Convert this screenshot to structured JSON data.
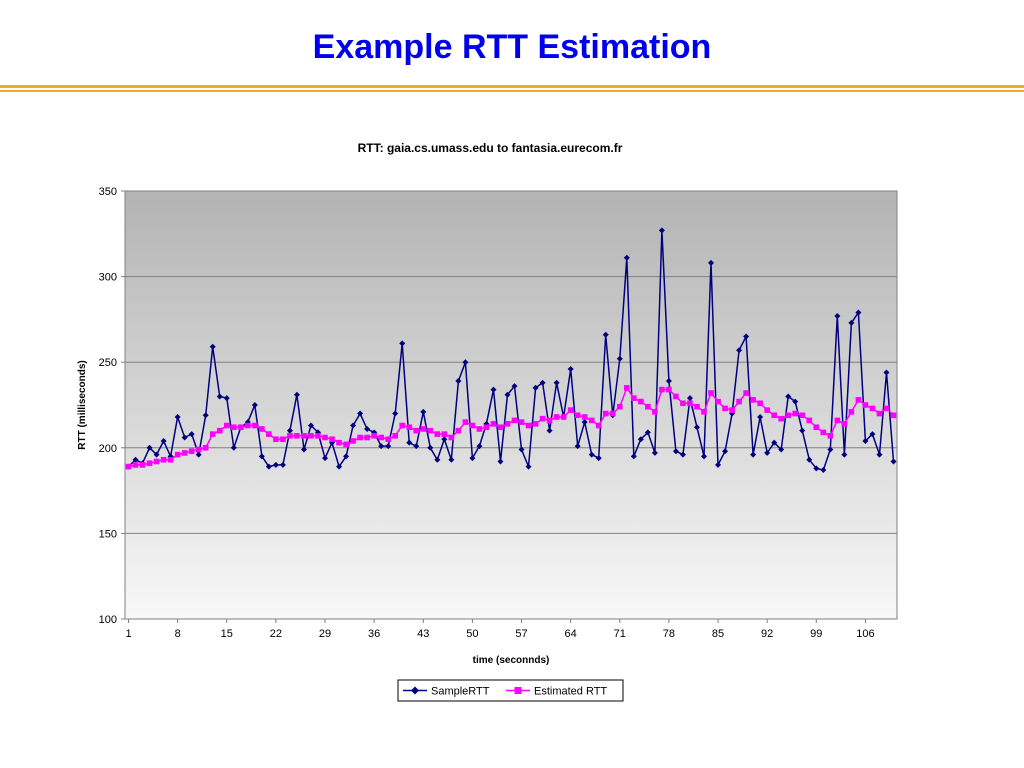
{
  "slide": {
    "title": "Example RTT Estimation"
  },
  "chart_data": {
    "type": "line",
    "title": "RTT: gaia.cs.umass.edu to fantasia.eurecom.fr",
    "xlabel": "time (seconnds)",
    "ylabel": "RTT (milliseconds)",
    "ylim": [
      100,
      350
    ],
    "yticks": [
      100,
      150,
      200,
      250,
      300,
      350
    ],
    "xticks": [
      "1",
      "8",
      "15",
      "22",
      "29",
      "36",
      "43",
      "50",
      "57",
      "64",
      "71",
      "78",
      "85",
      "92",
      "99",
      "106"
    ],
    "x_start": 1,
    "grid": true,
    "legend_position": "bottom",
    "series": [
      {
        "name": "SampleRTT",
        "color": "#000080",
        "marker": "diamond",
        "values": [
          189,
          193,
          191,
          200,
          196,
          204,
          195,
          218,
          206,
          208,
          196,
          219,
          259,
          230,
          229,
          200,
          212,
          215,
          225,
          195,
          189,
          190,
          190,
          210,
          231,
          199,
          213,
          209,
          194,
          203,
          189,
          195,
          213,
          220,
          211,
          209,
          201,
          201,
          220,
          261,
          203,
          201,
          221,
          200,
          193,
          205,
          193,
          239,
          250,
          194,
          201,
          214,
          234,
          192,
          231,
          236,
          199,
          189,
          235,
          238,
          210,
          238,
          218,
          246,
          201,
          215,
          196,
          194,
          266,
          219,
          252,
          311,
          195,
          205,
          209,
          197,
          327,
          239,
          198,
          196,
          229,
          212,
          195,
          308,
          190,
          198,
          220,
          257,
          265,
          196,
          218,
          197,
          203,
          199,
          230,
          227,
          210,
          193,
          188,
          187,
          199,
          277,
          196,
          273,
          279,
          204,
          208,
          196,
          244,
          192
        ]
      },
      {
        "name": "Estimated RTT",
        "color": "#ff00ff",
        "marker": "square",
        "values": [
          189,
          190,
          190,
          191,
          192,
          193,
          193,
          196,
          197,
          198,
          199,
          200,
          208,
          210,
          213,
          212,
          212,
          213,
          213,
          211,
          208,
          205,
          205,
          207,
          207,
          207,
          207,
          207,
          206,
          205,
          203,
          202,
          204,
          206,
          206,
          207,
          206,
          205,
          207,
          213,
          212,
          210,
          211,
          210,
          208,
          208,
          206,
          210,
          215,
          213,
          211,
          212,
          214,
          212,
          214,
          216,
          215,
          213,
          214,
          217,
          216,
          218,
          218,
          222,
          219,
          218,
          216,
          213,
          220,
          220,
          224,
          235,
          229,
          227,
          224,
          221,
          234,
          234,
          230,
          226,
          226,
          224,
          221,
          232,
          227,
          223,
          222,
          227,
          232,
          228,
          226,
          222,
          219,
          217,
          219,
          220,
          219,
          216,
          212,
          209,
          207,
          216,
          214,
          221,
          228,
          225,
          223,
          220,
          223,
          219
        ]
      }
    ]
  }
}
